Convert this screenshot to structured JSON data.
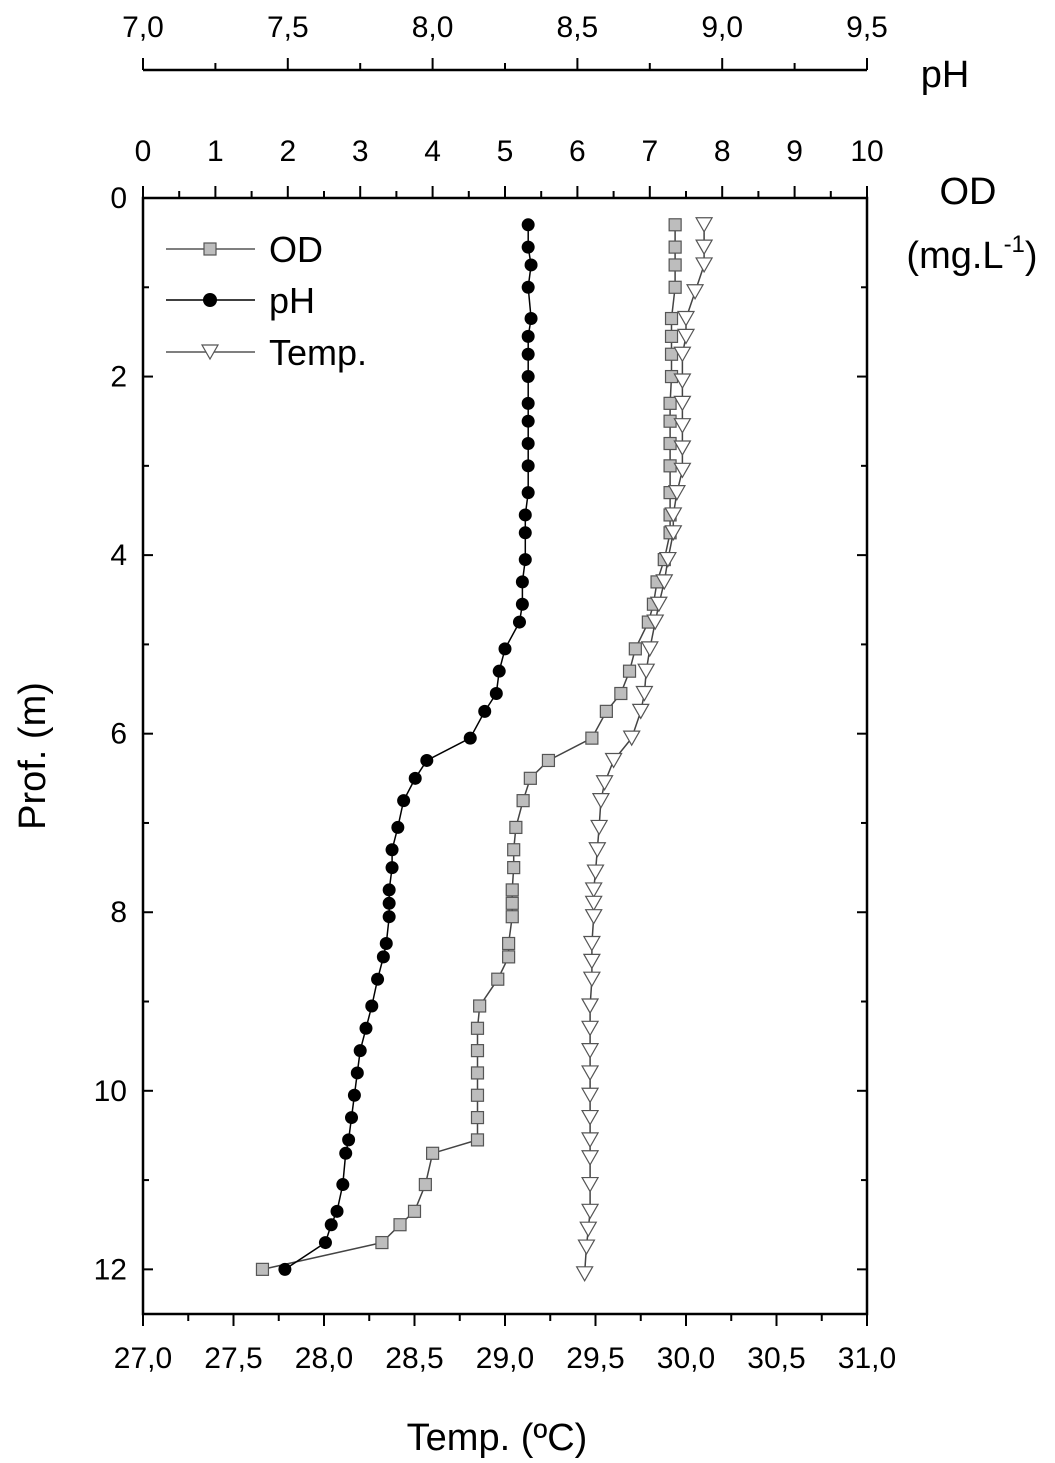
{
  "chart_data": {
    "type": "scatter",
    "y_axis": {
      "label": "Prof. (m)",
      "range": [
        0,
        12.5
      ],
      "ticks": [
        "0",
        "2",
        "4",
        "6",
        "8",
        "10",
        "12"
      ],
      "inverted": true
    },
    "axes": {
      "temp": {
        "label": "Temp. (ºC)",
        "position": "bottom",
        "range": [
          27.0,
          31.0
        ],
        "ticks": [
          "27,0",
          "27,5",
          "28,0",
          "28,5",
          "29,0",
          "29,5",
          "30,0",
          "30,5",
          "31,0"
        ]
      },
      "od": {
        "label": "OD",
        "unit_label": "(mg.L",
        "unit_exponent": "-1",
        "unit_close": ")",
        "position": "top-inner",
        "range": [
          0,
          10
        ],
        "ticks": [
          "0",
          "1",
          "2",
          "3",
          "4",
          "5",
          "6",
          "7",
          "8",
          "9",
          "10"
        ]
      },
      "ph": {
        "label": "pH",
        "position": "top-outer",
        "range": [
          7.0,
          9.5
        ],
        "ticks": [
          "7,0",
          "7,5",
          "8,0",
          "8,5",
          "9,0",
          "9,5"
        ]
      }
    },
    "legend": {
      "placement": "top-left",
      "entries": [
        "OD",
        "pH",
        "Temp."
      ]
    },
    "series": [
      {
        "name": "OD",
        "axis": "od",
        "marker": "square",
        "color": "#bdbdbd",
        "depth": [
          0.3,
          0.55,
          0.75,
          1.0,
          1.35,
          1.55,
          1.75,
          2.0,
          2.3,
          2.5,
          2.75,
          3.0,
          3.3,
          3.55,
          3.75,
          4.05,
          4.3,
          4.55,
          4.75,
          5.05,
          5.3,
          5.55,
          5.75,
          6.05,
          6.3,
          6.5,
          6.75,
          7.05,
          7.3,
          7.5,
          7.75,
          7.9,
          8.05,
          8.35,
          8.5,
          8.75,
          9.05,
          9.3,
          9.55,
          9.8,
          10.05,
          10.3,
          10.55,
          10.7,
          11.05,
          11.35,
          11.5,
          11.7,
          12.0
        ],
        "values": [
          7.35,
          7.35,
          7.35,
          7.35,
          7.3,
          7.3,
          7.3,
          7.3,
          7.28,
          7.28,
          7.28,
          7.28,
          7.28,
          7.28,
          7.28,
          7.2,
          7.1,
          7.05,
          6.98,
          6.8,
          6.72,
          6.6,
          6.4,
          6.2,
          5.6,
          5.35,
          5.25,
          5.15,
          5.12,
          5.12,
          5.1,
          5.1,
          5.1,
          5.05,
          5.05,
          4.9,
          4.65,
          4.62,
          4.62,
          4.62,
          4.62,
          4.62,
          4.62,
          4.0,
          3.9,
          3.75,
          3.55,
          3.3,
          1.65
        ]
      },
      {
        "name": "pH",
        "axis": "ph",
        "marker": "circle",
        "color": "#000000",
        "depth": [
          0.3,
          0.55,
          0.75,
          1.0,
          1.35,
          1.55,
          1.75,
          2.0,
          2.3,
          2.5,
          2.75,
          3.0,
          3.3,
          3.55,
          3.75,
          4.05,
          4.3,
          4.55,
          4.75,
          5.05,
          5.3,
          5.55,
          5.75,
          6.05,
          6.3,
          6.5,
          6.75,
          7.05,
          7.3,
          7.5,
          7.75,
          7.9,
          8.05,
          8.35,
          8.5,
          8.75,
          9.05,
          9.3,
          9.55,
          9.8,
          10.05,
          10.3,
          10.55,
          10.7,
          11.05,
          11.35,
          11.5,
          11.7,
          12.0
        ],
        "values": [
          8.33,
          8.33,
          8.34,
          8.33,
          8.34,
          8.33,
          8.33,
          8.33,
          8.33,
          8.33,
          8.33,
          8.33,
          8.33,
          8.32,
          8.32,
          8.32,
          8.31,
          8.31,
          8.3,
          8.25,
          8.23,
          8.22,
          8.18,
          8.13,
          7.98,
          7.94,
          7.9,
          7.88,
          7.86,
          7.86,
          7.85,
          7.85,
          7.85,
          7.84,
          7.83,
          7.81,
          7.79,
          7.77,
          7.75,
          7.74,
          7.73,
          7.72,
          7.71,
          7.7,
          7.69,
          7.67,
          7.65,
          7.63,
          7.49
        ]
      },
      {
        "name": "Temp.",
        "axis": "temp",
        "marker": "triangle-down",
        "color": "#ffffff",
        "depth": [
          0.3,
          0.55,
          0.75,
          1.05,
          1.35,
          1.55,
          1.75,
          2.05,
          2.3,
          2.55,
          2.8,
          3.05,
          3.3,
          3.55,
          3.75,
          4.05,
          4.3,
          4.55,
          4.75,
          5.05,
          5.3,
          5.55,
          5.75,
          6.05,
          6.3,
          6.55,
          6.75,
          7.05,
          7.3,
          7.55,
          7.75,
          7.9,
          8.05,
          8.35,
          8.55,
          8.75,
          9.05,
          9.3,
          9.55,
          9.8,
          10.05,
          10.3,
          10.55,
          10.75,
          11.05,
          11.35,
          11.55,
          11.75,
          12.05
        ],
        "values": [
          30.1,
          30.1,
          30.1,
          30.05,
          30.0,
          30.0,
          29.98,
          29.98,
          29.98,
          29.98,
          29.98,
          29.98,
          29.95,
          29.93,
          29.93,
          29.9,
          29.88,
          29.85,
          29.83,
          29.8,
          29.78,
          29.77,
          29.75,
          29.7,
          29.6,
          29.55,
          29.53,
          29.52,
          29.51,
          29.5,
          29.49,
          29.49,
          29.49,
          29.48,
          29.48,
          29.48,
          29.47,
          29.47,
          29.47,
          29.47,
          29.47,
          29.47,
          29.47,
          29.47,
          29.47,
          29.47,
          29.46,
          29.45,
          29.44
        ]
      }
    ]
  }
}
